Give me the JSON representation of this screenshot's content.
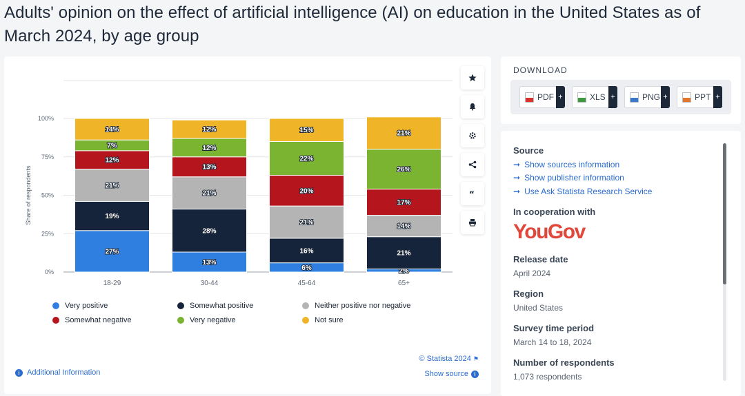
{
  "title": "Adults' opinion on the effect of artificial intelligence (AI) on education in the United States as of March 2024, by age group",
  "chart_data": {
    "type": "bar",
    "stacked": true,
    "percent_stacked": true,
    "categories": [
      "18-29",
      "30-44",
      "45-64",
      "65+"
    ],
    "ylabel": "Share of respondents",
    "xlabel": "",
    "ylim": [
      0,
      100
    ],
    "yticks": [
      "0%",
      "25%",
      "50%",
      "75%",
      "100%"
    ],
    "legend_position": "bottom",
    "series": [
      {
        "name": "Very positive",
        "color": "#2e7fe0",
        "values": [
          27,
          13,
          6,
          2
        ]
      },
      {
        "name": "Somewhat positive",
        "color": "#15243b",
        "values": [
          19,
          28,
          16,
          21
        ]
      },
      {
        "name": "Neither positive nor negative",
        "color": "#b4b4b4",
        "values": [
          21,
          21,
          21,
          14
        ]
      },
      {
        "name": "Somewhat negative",
        "color": "#b5161d",
        "values": [
          12,
          13,
          20,
          17
        ]
      },
      {
        "name": "Very negative",
        "color": "#7ab431",
        "values": [
          7,
          12,
          22,
          26
        ]
      },
      {
        "name": "Not sure",
        "color": "#f0b429",
        "values": [
          14,
          12,
          15,
          21
        ]
      }
    ]
  },
  "chart_footer": {
    "credit": "© Statista 2024",
    "show_source": "Show source",
    "additional_info": "Additional Information"
  },
  "tools": [
    "star-icon",
    "bell-icon",
    "gear-icon",
    "share-icon",
    "quote-icon",
    "print-icon"
  ],
  "download": {
    "title": "DOWNLOAD",
    "buttons": [
      {
        "label": "PDF",
        "color": "#d9322b"
      },
      {
        "label": "XLS",
        "color": "#3c9a3c"
      },
      {
        "label": "PNG",
        "color": "#3a78c9"
      },
      {
        "label": "PPT",
        "color": "#e2762d"
      }
    ]
  },
  "info": {
    "source_heading": "Source",
    "links": [
      "Show sources information",
      "Show publisher information",
      "Use Ask Statista Research Service"
    ],
    "cooperation_heading": "In cooperation with",
    "cooperation_logo": "YouGov",
    "release_heading": "Release date",
    "release_value": "April 2024",
    "region_heading": "Region",
    "region_value": "United States",
    "survey_heading": "Survey time period",
    "survey_value": "March 14 to 18, 2024",
    "respondents_heading": "Number of respondents",
    "respondents_value": "1,073 respondents"
  }
}
